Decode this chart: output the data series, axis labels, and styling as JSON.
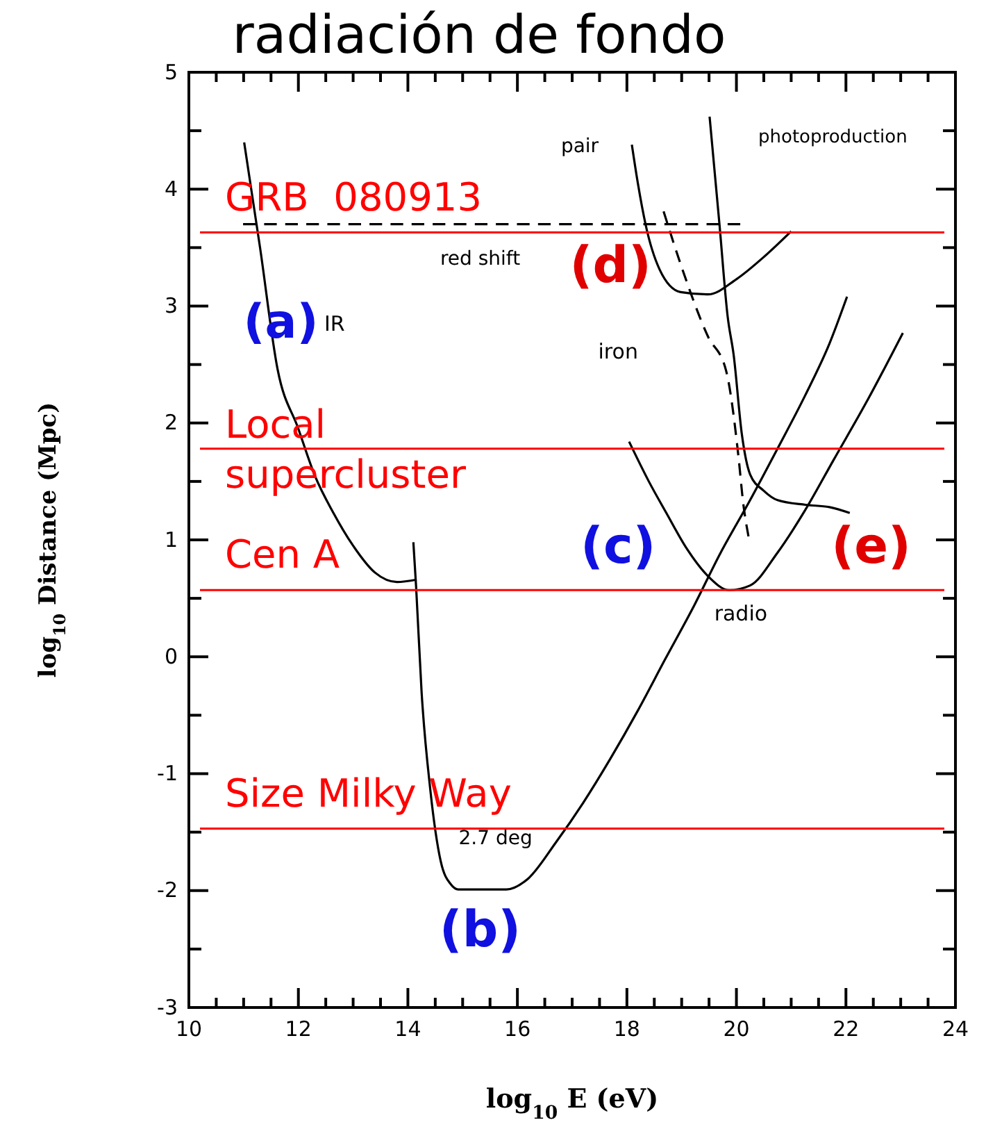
{
  "chart_data": {
    "type": "line",
    "title": "radiación de fondo",
    "xlabel": "log$_{10}$ E (eV)",
    "ylabel": "log$_{10}$ Distance (Mpc)",
    "xlim": [
      10,
      24
    ],
    "xticks": [
      10,
      12,
      14,
      16,
      18,
      20,
      22,
      24
    ],
    "ylim": [
      -3,
      5
    ],
    "yticks": [
      -3,
      -2,
      -1,
      0,
      1,
      2,
      3,
      4,
      5
    ],
    "grid": false,
    "marker": "none",
    "series": [
      {
        "color": "#000000",
        "x": [
          11.01,
          11.3,
          11.62,
          12.0,
          12.3,
          12.64,
          13.0,
          13.4,
          13.8,
          14.16
        ],
        "values": [
          4.4,
          3.5,
          2.46,
          1.95,
          1.55,
          1.23,
          0.95,
          0.72,
          0.64,
          0.66
        ]
      },
      {
        "color": "#000000",
        "x": [
          14.1,
          14.15,
          14.25,
          14.41,
          14.6,
          14.79,
          14.92,
          15.3,
          15.8,
          16.19,
          16.7,
          17.2,
          17.7,
          18.2,
          18.7,
          19.23,
          19.7,
          20.25,
          20.75,
          21.26,
          21.7,
          22.02
        ],
        "values": [
          0.98,
          0.6,
          -0.3,
          -1.14,
          -1.75,
          -1.95,
          -1.99,
          -1.99,
          -1.99,
          -1.9,
          -1.59,
          -1.25,
          -0.87,
          -0.46,
          -0.02,
          0.44,
          0.88,
          1.34,
          1.78,
          2.24,
          2.68,
          3.08
        ]
      },
      {
        "color": "#000000",
        "x": [
          18.04,
          18.4,
          18.72,
          19.1,
          19.48,
          19.87,
          20.25,
          20.75,
          21.25,
          21.77,
          22.4,
          23.04
        ],
        "values": [
          1.84,
          1.5,
          1.23,
          0.92,
          0.69,
          0.57,
          0.61,
          0.89,
          1.25,
          1.68,
          2.2,
          2.77
        ]
      },
      {
        "color": "#000000",
        "x": [
          18.09,
          18.2,
          18.34,
          18.6,
          18.98,
          19.48,
          20.0,
          20.5,
          21.0
        ],
        "values": [
          4.38,
          4.05,
          3.7,
          3.31,
          3.12,
          3.1,
          3.23,
          3.42,
          3.64
        ]
      },
      {
        "color": "#000000",
        "x": [
          19.51,
          19.69,
          19.84,
          19.95,
          20.1,
          20.25,
          20.5,
          20.75,
          21.26,
          21.7,
          22.07
        ],
        "values": [
          4.62,
          3.7,
          2.91,
          2.58,
          1.9,
          1.56,
          1.42,
          1.34,
          1.3,
          1.28,
          1.23
        ]
      },
      {
        "color": "#000000",
        "line_style": "dashed",
        "x": [
          18.67,
          18.98,
          19.48,
          19.81,
          20.04,
          20.12,
          20.22
        ],
        "values": [
          3.81,
          3.36,
          2.74,
          2.45,
          1.7,
          1.33,
          1.03
        ]
      },
      {
        "color": "#000000",
        "line_style": "dashed",
        "x": [
          10.99,
          20.07
        ],
        "values": [
          3.7,
          3.7
        ]
      }
    ],
    "ref_lines": [
      {
        "axis": "y",
        "value": 3.63,
        "label": "GRB  080913",
        "color": "#ff0000"
      },
      {
        "axis": "y",
        "value": 1.78,
        "label": "Local supercluster",
        "color": "#ff0000"
      },
      {
        "axis": "y",
        "value": 0.57,
        "label": "Cen A",
        "color": "#ff0000"
      },
      {
        "axis": "y",
        "value": -1.47,
        "label": "Size Milky Way",
        "color": "#ff0000"
      }
    ],
    "annotations": [
      "pair",
      "photoproduction",
      "red shift",
      "IR",
      "iron",
      "radio",
      "2.7 deg",
      "(a)",
      "(b)",
      "(c)",
      "(d)",
      "(e)"
    ]
  }
}
